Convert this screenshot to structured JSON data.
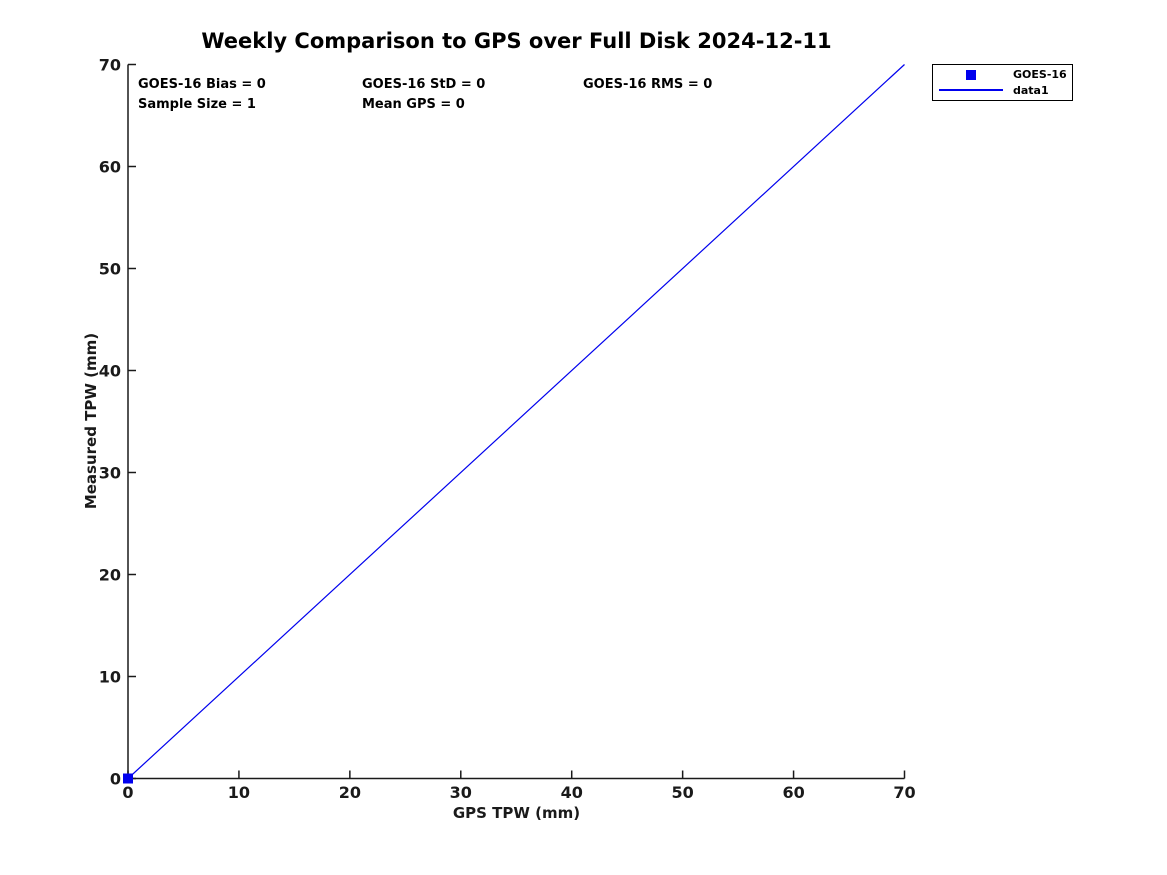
{
  "chart_data": {
    "type": "line",
    "title": "Weekly Comparison to GPS over Full Disk 2024-12-11",
    "xlabel": "GPS TPW (mm)",
    "ylabel": "Measured TPW (mm)",
    "xlim": [
      0,
      70
    ],
    "ylim": [
      0,
      70
    ],
    "xticks": [
      0,
      10,
      20,
      30,
      40,
      50,
      60,
      70
    ],
    "yticks": [
      0,
      10,
      20,
      30,
      40,
      50,
      60,
      70
    ],
    "grid": false,
    "legend_position": "outside-top-right",
    "annotations": {
      "bias": "GOES-16 Bias = 0",
      "std": "GOES-16 StD = 0",
      "rms": "GOES-16 RMS = 0",
      "sample_size": "Sample Size = 1",
      "mean_gps": "Mean GPS = 0"
    },
    "legend": {
      "entries": [
        {
          "label": "GOES-16",
          "marker": "square"
        },
        {
          "label": "data1",
          "marker": "line"
        }
      ]
    },
    "series": [
      {
        "name": "GOES-16",
        "type": "scatter",
        "marker": "square",
        "color": "#0000ee",
        "points": [
          [
            0,
            0
          ]
        ]
      },
      {
        "name": "data1",
        "type": "line",
        "color": "#0000ee",
        "points": [
          [
            0,
            0
          ],
          [
            70,
            70
          ]
        ]
      }
    ],
    "colors": {
      "series_blue": "#0000ee",
      "axis": "#1a1a1a",
      "title_text": "#000000",
      "legend_border": "#000000",
      "background": "#ffffff"
    }
  }
}
